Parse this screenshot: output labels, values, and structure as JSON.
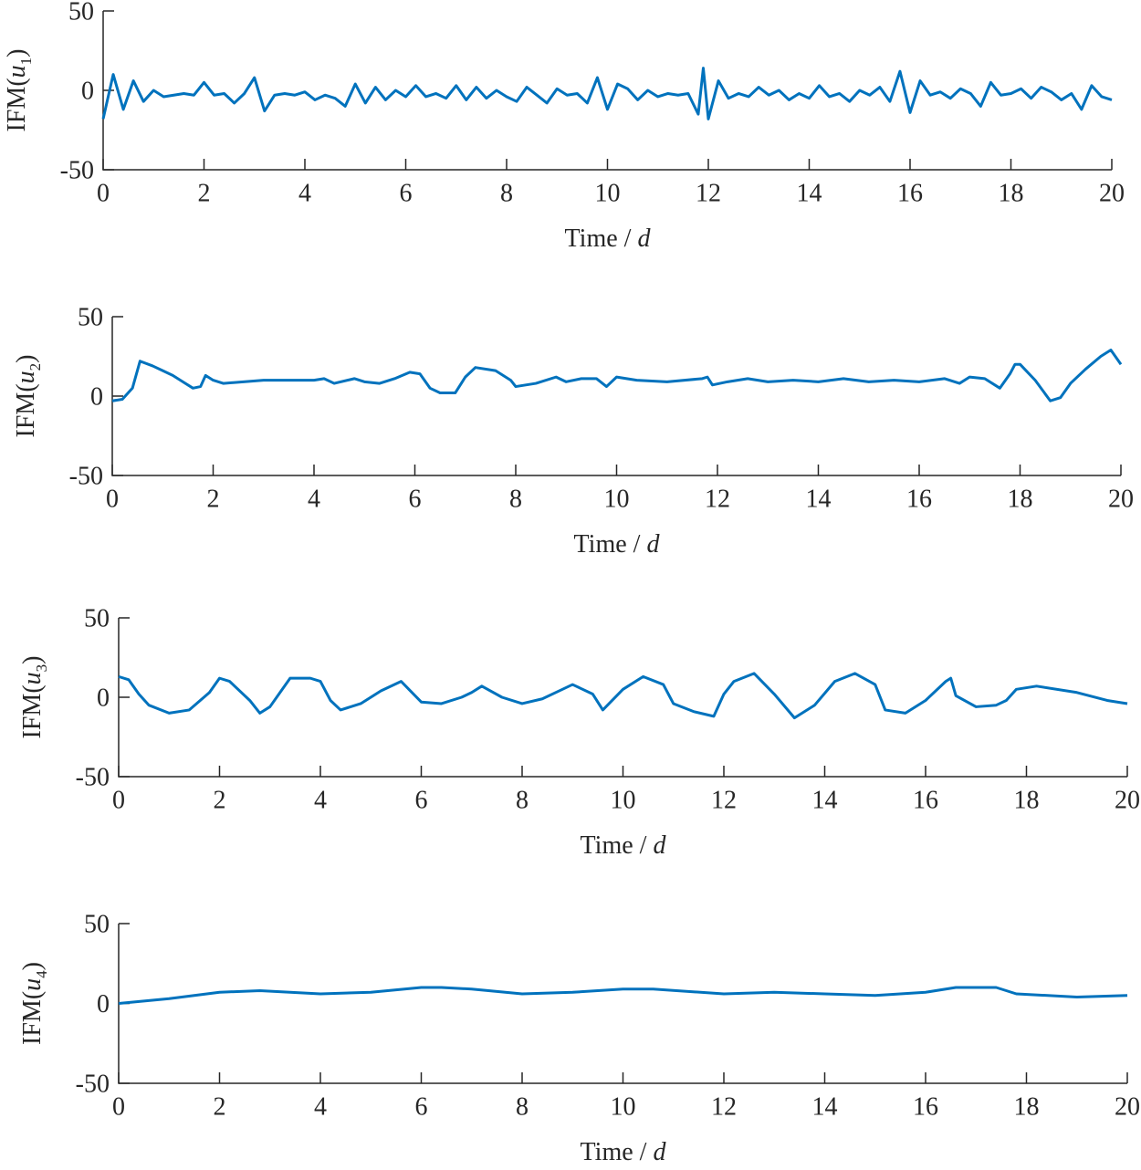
{
  "chart_data": [
    {
      "type": "line",
      "color": "#0072bd",
      "xlim": [
        0,
        20
      ],
      "ylim": [
        -50,
        50
      ],
      "xticks": [
        0,
        2,
        4,
        6,
        8,
        10,
        12,
        14,
        16,
        18,
        20
      ],
      "yticks": [
        -50,
        0,
        50
      ],
      "xlabel": [
        "Time / ",
        "d"
      ],
      "ylabel": [
        "IFM(",
        "u",
        "1",
        ")"
      ],
      "x": [
        0,
        0.2,
        0.4,
        0.6,
        0.8,
        1.0,
        1.2,
        1.4,
        1.6,
        1.8,
        2.0,
        2.2,
        2.4,
        2.6,
        2.8,
        3.0,
        3.2,
        3.4,
        3.6,
        3.8,
        4.0,
        4.2,
        4.4,
        4.6,
        4.8,
        5.0,
        5.2,
        5.4,
        5.6,
        5.8,
        6.0,
        6.2,
        6.4,
        6.6,
        6.8,
        7.0,
        7.2,
        7.4,
        7.6,
        7.8,
        8.0,
        8.2,
        8.4,
        8.6,
        8.8,
        9.0,
        9.2,
        9.4,
        9.6,
        9.8,
        10.0,
        10.2,
        10.4,
        10.6,
        10.8,
        11.0,
        11.2,
        11.4,
        11.6,
        11.8,
        11.9,
        12.0,
        12.2,
        12.4,
        12.6,
        12.8,
        13.0,
        13.2,
        13.4,
        13.6,
        13.8,
        14.0,
        14.2,
        14.4,
        14.6,
        14.8,
        15.0,
        15.2,
        15.4,
        15.6,
        15.8,
        16.0,
        16.2,
        16.4,
        16.6,
        16.8,
        17.0,
        17.2,
        17.4,
        17.6,
        17.8,
        18.0,
        18.2,
        18.4,
        18.6,
        18.8,
        19.0,
        19.2,
        19.4,
        19.6,
        19.8,
        20.0
      ],
      "values": [
        -18,
        10,
        -12,
        6,
        -7,
        0,
        -4,
        -3,
        -2,
        -3,
        5,
        -3,
        -2,
        -8,
        -2,
        8,
        -13,
        -3,
        -2,
        -3,
        -1,
        -6,
        -3,
        -5,
        -10,
        4,
        -8,
        2,
        -6,
        0,
        -4,
        3,
        -4,
        -2,
        -5,
        3,
        -6,
        2,
        -5,
        0,
        -4,
        -7,
        2,
        -3,
        -8,
        1,
        -3,
        -2,
        -8,
        8,
        -12,
        4,
        1,
        -6,
        0,
        -4,
        -2,
        -3,
        -2,
        -15,
        14,
        -18,
        6,
        -5,
        -2,
        -4,
        2,
        -3,
        0,
        -6,
        -2,
        -5,
        3,
        -4,
        -2,
        -7,
        0,
        -3,
        2,
        -7,
        12,
        -14,
        6,
        -3,
        -1,
        -5,
        1,
        -2,
        -10,
        5,
        -3,
        -2,
        1,
        -5,
        2,
        -1,
        -6,
        -2,
        -12,
        3,
        -4,
        -6
      ]
    },
    {
      "type": "line",
      "color": "#0072bd",
      "xlim": [
        0,
        20
      ],
      "ylim": [
        -50,
        50
      ],
      "xticks": [
        0,
        2,
        4,
        6,
        8,
        10,
        12,
        14,
        16,
        18,
        20
      ],
      "yticks": [
        -50,
        0,
        50
      ],
      "xlabel": [
        "Time / ",
        "d"
      ],
      "ylabel": [
        "IFM(",
        "u",
        "2",
        ")"
      ],
      "x": [
        0,
        0.2,
        0.4,
        0.55,
        0.8,
        1.0,
        1.2,
        1.4,
        1.6,
        1.75,
        1.85,
        2.0,
        2.2,
        2.6,
        3.0,
        3.5,
        4.0,
        4.2,
        4.4,
        4.8,
        5.0,
        5.3,
        5.6,
        5.9,
        6.1,
        6.3,
        6.5,
        6.8,
        7.0,
        7.2,
        7.6,
        7.9,
        8.0,
        8.4,
        8.8,
        9.0,
        9.3,
        9.6,
        9.8,
        10.0,
        10.4,
        11.0,
        11.7,
        11.8,
        11.9,
        12.2,
        12.6,
        13.0,
        13.5,
        14.0,
        14.5,
        15.0,
        15.5,
        16.0,
        16.5,
        16.8,
        17.0,
        17.3,
        17.6,
        17.8,
        17.9,
        18.0,
        18.3,
        18.6,
        18.8,
        19.0,
        19.3,
        19.6,
        19.8,
        20.0
      ],
      "values": [
        -3,
        -2,
        5,
        22,
        19,
        16,
        13,
        9,
        5,
        6,
        13,
        10,
        8,
        9,
        10,
        10,
        10,
        11,
        8,
        11,
        9,
        8,
        11,
        15,
        14,
        5,
        2,
        2,
        12,
        18,
        16,
        10,
        6,
        8,
        12,
        9,
        11,
        11,
        6,
        12,
        10,
        9,
        11,
        12,
        7,
        9,
        11,
        9,
        10,
        9,
        11,
        9,
        10,
        9,
        11,
        8,
        12,
        11,
        5,
        14,
        20,
        20,
        10,
        -3,
        -1,
        8,
        17,
        25,
        29,
        20
      ]
    },
    {
      "type": "line",
      "color": "#0072bd",
      "xlim": [
        0,
        20
      ],
      "ylim": [
        -50,
        50
      ],
      "xticks": [
        0,
        2,
        4,
        6,
        8,
        10,
        12,
        14,
        16,
        18,
        20
      ],
      "yticks": [
        -50,
        0,
        50
      ],
      "xlabel": [
        "Time / ",
        "d"
      ],
      "ylabel": [
        "IFM(",
        "u",
        "3",
        ")"
      ],
      "x": [
        0,
        0.2,
        0.4,
        0.6,
        1.0,
        1.4,
        1.8,
        2.0,
        2.2,
        2.6,
        2.8,
        3.0,
        3.2,
        3.4,
        3.8,
        4.0,
        4.2,
        4.4,
        4.8,
        5.2,
        5.6,
        6.0,
        6.4,
        6.8,
        7.0,
        7.2,
        7.6,
        8.0,
        8.4,
        8.8,
        9.0,
        9.4,
        9.6,
        10.0,
        10.4,
        10.8,
        11.0,
        11.4,
        11.8,
        12.0,
        12.2,
        12.6,
        13.0,
        13.4,
        13.8,
        14.2,
        14.6,
        15.0,
        15.2,
        15.6,
        16.0,
        16.4,
        16.5,
        16.6,
        17.0,
        17.4,
        17.6,
        17.8,
        18.2,
        19.0,
        19.6,
        20.0
      ],
      "values": [
        13,
        11,
        2,
        -5,
        -10,
        -8,
        3,
        12,
        10,
        -2,
        -10,
        -6,
        3,
        12,
        12,
        10,
        -2,
        -8,
        -4,
        4,
        10,
        -3,
        -4,
        0,
        3,
        7,
        0,
        -4,
        -1,
        5,
        8,
        2,
        -8,
        5,
        13,
        8,
        -4,
        -9,
        -12,
        2,
        10,
        15,
        2,
        -13,
        -5,
        10,
        15,
        8,
        -8,
        -10,
        -2,
        10,
        12,
        1,
        -6,
        -5,
        -2,
        5,
        7,
        3,
        -2,
        -4
      ]
    },
    {
      "type": "line",
      "color": "#0072bd",
      "xlim": [
        0,
        20
      ],
      "ylim": [
        -50,
        50
      ],
      "xticks": [
        0,
        2,
        4,
        6,
        8,
        10,
        12,
        14,
        16,
        18,
        20
      ],
      "yticks": [
        -50,
        0,
        50
      ],
      "xlabel": [
        "Time / ",
        "d"
      ],
      "ylabel": [
        "IFM(",
        "u",
        "4",
        ")"
      ],
      "x": [
        0,
        1,
        2,
        2.8,
        4,
        5,
        6,
        6.4,
        7,
        8,
        9,
        10,
        10.6,
        12,
        13,
        14,
        15,
        16,
        16.6,
        17.4,
        17.8,
        19,
        20
      ],
      "values": [
        0,
        3,
        7,
        8,
        6,
        7,
        10,
        10,
        9,
        6,
        7,
        9,
        9,
        6,
        7,
        6,
        5,
        7,
        10,
        10,
        6,
        4,
        5
      ]
    }
  ]
}
